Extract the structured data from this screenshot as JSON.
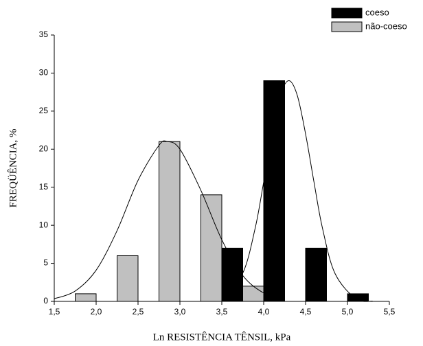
{
  "chart_data": {
    "type": "histogram",
    "xlabel": "Ln RESISTÊNCIA TÊNSIL, kPa",
    "ylabel": "FREQÜÊNCIA, %",
    "xlim": [
      1.5,
      5.5
    ],
    "ylim": [
      0,
      35
    ],
    "xticks": [
      {
        "value": 1.5,
        "label": "1,5"
      },
      {
        "value": 2.0,
        "label": "2,0"
      },
      {
        "value": 2.5,
        "label": "2,5"
      },
      {
        "value": 3.0,
        "label": "3,0"
      },
      {
        "value": 3.5,
        "label": "3,5"
      },
      {
        "value": 4.0,
        "label": "4,0"
      },
      {
        "value": 4.5,
        "label": "4,5"
      },
      {
        "value": 5.0,
        "label": "5,0"
      },
      {
        "value": 5.5,
        "label": "5,5"
      }
    ],
    "yticks": [
      0,
      5,
      10,
      15,
      20,
      25,
      30,
      35
    ],
    "legend": "top-right",
    "series": [
      {
        "name": "coeso",
        "color": "#000000",
        "bins": [
          [
            3.5,
            3.75
          ],
          [
            4.0,
            4.25
          ],
          [
            4.5,
            4.75
          ],
          [
            5.0,
            5.25
          ]
        ],
        "values": [
          7,
          29,
          7,
          1
        ],
        "curve": {
          "color": "#000000",
          "x": [
            3.5,
            3.75,
            3.9,
            4.0,
            4.1,
            4.2,
            4.3,
            4.4,
            4.5,
            4.6,
            4.7,
            4.85,
            5.1,
            5.3
          ],
          "values": [
            0.36,
            3.7,
            9.7,
            15.7,
            22.0,
            27.1,
            29,
            27.1,
            22.0,
            15.7,
            9.7,
            3.7,
            0.36,
            0.03
          ]
        }
      },
      {
        "name": "não-coeso",
        "color": "#c0c0c0",
        "bins": [
          [
            1.75,
            2.0
          ],
          [
            2.25,
            2.5
          ],
          [
            2.75,
            3.0
          ],
          [
            3.25,
            3.5
          ],
          [
            3.75,
            4.0
          ]
        ],
        "values": [
          1,
          6,
          21,
          14,
          2
        ],
        "curve": {
          "color": "#000000",
          "x": [
            1.5,
            1.75,
            2.0,
            2.25,
            2.5,
            2.75,
            2.85,
            3.0,
            3.25,
            3.5,
            3.75,
            4.0,
            4.25
          ],
          "values": [
            0.34,
            1.36,
            4.1,
            9.3,
            15.9,
            20.5,
            21,
            20.0,
            14.6,
            8.1,
            3.4,
            1.1,
            0.2
          ]
        }
      }
    ]
  }
}
